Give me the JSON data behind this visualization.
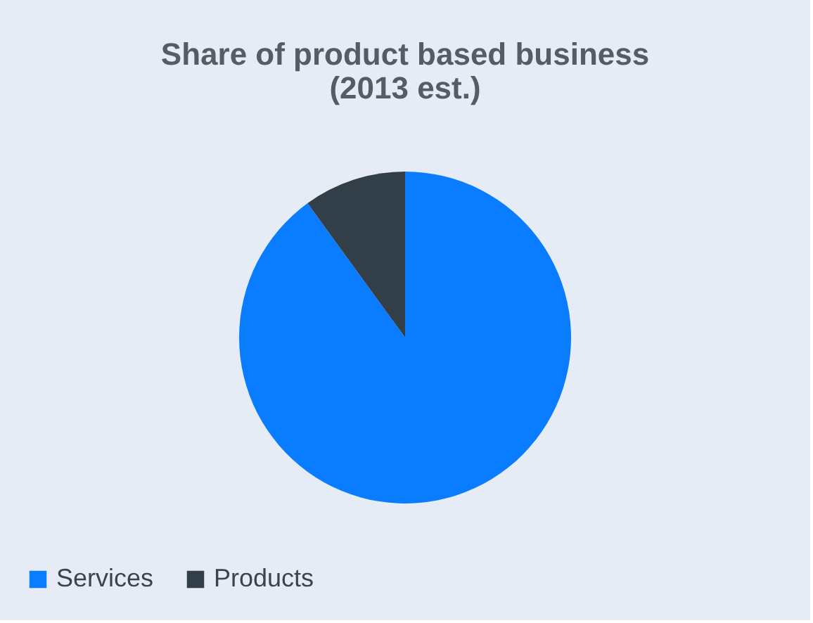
{
  "chart_data": {
    "type": "pie",
    "title": [
      "Share of product based business",
      "(2013 est.)"
    ],
    "categories": [
      "Services",
      "Products"
    ],
    "values": [
      90,
      10
    ],
    "colors": [
      "#0a7cff",
      "#323e48"
    ],
    "legend": "bottom"
  }
}
